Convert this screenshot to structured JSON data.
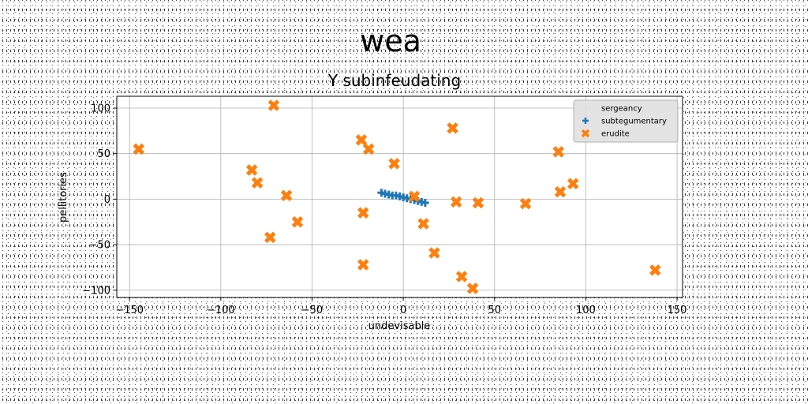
{
  "chart_data": {
    "type": "scatter",
    "suptitle": "wea",
    "title": "Y subinfeudating",
    "xlabel": "undevisable",
    "ylabel": "pellitories",
    "xlim": [
      -157,
      153
    ],
    "ylim": [
      -108,
      113
    ],
    "xticks": [
      -150,
      -100,
      -50,
      0,
      50,
      100,
      150
    ],
    "xtick_labels": [
      "−150",
      "−100",
      "−50",
      "0",
      "50",
      "100",
      "150"
    ],
    "yticks": [
      -100,
      -50,
      0,
      50,
      100
    ],
    "ytick_labels": [
      "−100",
      "−50",
      "0",
      "50",
      "100"
    ],
    "grid": true,
    "legend_position": "top-right",
    "legend": [
      "sergeancy",
      "subtegumentary",
      "erudite"
    ],
    "series": [
      {
        "name": "sergeancy",
        "marker": "none",
        "color": "#ffffff",
        "x": [],
        "y": []
      },
      {
        "name": "subtegumentary",
        "marker": "plus",
        "color": "#1f77b4",
        "x": [
          -12,
          -10,
          -8,
          -6,
          -4,
          -2,
          0,
          2,
          4,
          6,
          8,
          10,
          12
        ],
        "y": [
          7,
          6,
          5,
          4,
          4,
          3,
          2,
          1,
          0,
          -1,
          -2,
          -3,
          -4
        ]
      },
      {
        "name": "erudite",
        "marker": "x",
        "color": "#ff7f0e",
        "x": [
          -145,
          -71,
          -83,
          -80,
          -64,
          -58,
          -73,
          -23,
          -19,
          -22,
          -22,
          -5,
          6,
          11,
          17,
          27,
          29,
          32,
          38,
          41,
          67,
          85,
          86,
          93,
          138
        ],
        "y": [
          55,
          103,
          32,
          18,
          4,
          -25,
          -42,
          65,
          55,
          -15,
          -72,
          39,
          3,
          -27,
          -59,
          78,
          -3,
          -85,
          -98,
          -4,
          -5,
          52,
          8,
          17,
          -78
        ]
      }
    ]
  }
}
